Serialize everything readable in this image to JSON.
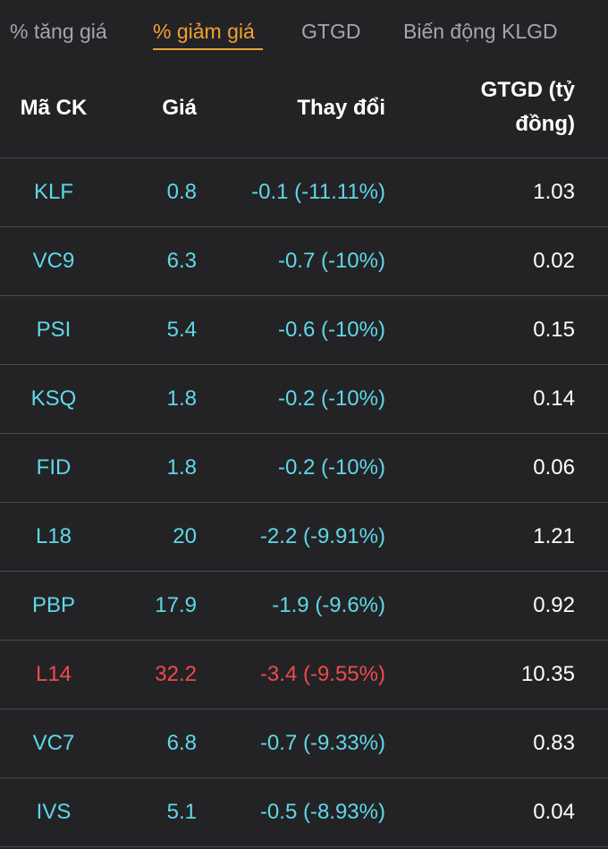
{
  "colors": {
    "background": "#232326",
    "active_tab": "#f0a132",
    "inactive_tab": "#a5a5ab",
    "cyan": "#5fd8e8",
    "red": "#f04a48",
    "divider": "#4a4a4f"
  },
  "tabs": [
    {
      "label": "% tăng giá",
      "active": false
    },
    {
      "label": "% giảm giá",
      "active": true
    },
    {
      "label": "GTGD",
      "active": false
    },
    {
      "label": "Biến động KLGD",
      "active": false
    }
  ],
  "header": {
    "code": "Mã CK",
    "price": "Giá",
    "change": "Thay đổi",
    "value_line1": "GTGD (tỷ",
    "value_line2": "đồng)"
  },
  "rows": [
    {
      "code": "KLF",
      "price": "0.8",
      "change": "-0.1 (-11.11%)",
      "value": "1.03",
      "color": "cyan"
    },
    {
      "code": "VC9",
      "price": "6.3",
      "change": "-0.7 (-10%)",
      "value": "0.02",
      "color": "cyan"
    },
    {
      "code": "PSI",
      "price": "5.4",
      "change": "-0.6 (-10%)",
      "value": "0.15",
      "color": "cyan"
    },
    {
      "code": "KSQ",
      "price": "1.8",
      "change": "-0.2 (-10%)",
      "value": "0.14",
      "color": "cyan"
    },
    {
      "code": "FID",
      "price": "1.8",
      "change": "-0.2 (-10%)",
      "value": "0.06",
      "color": "cyan"
    },
    {
      "code": "L18",
      "price": "20",
      "change": "-2.2 (-9.91%)",
      "value": "1.21",
      "color": "cyan"
    },
    {
      "code": "PBP",
      "price": "17.9",
      "change": "-1.9 (-9.6%)",
      "value": "0.92",
      "color": "cyan"
    },
    {
      "code": "L14",
      "price": "32.2",
      "change": "-3.4 (-9.55%)",
      "value": "10.35",
      "color": "red"
    },
    {
      "code": "VC7",
      "price": "6.8",
      "change": "-0.7 (-9.33%)",
      "value": "0.83",
      "color": "cyan"
    },
    {
      "code": "IVS",
      "price": "5.1",
      "change": "-0.5 (-8.93%)",
      "value": "0.04",
      "color": "cyan"
    }
  ]
}
